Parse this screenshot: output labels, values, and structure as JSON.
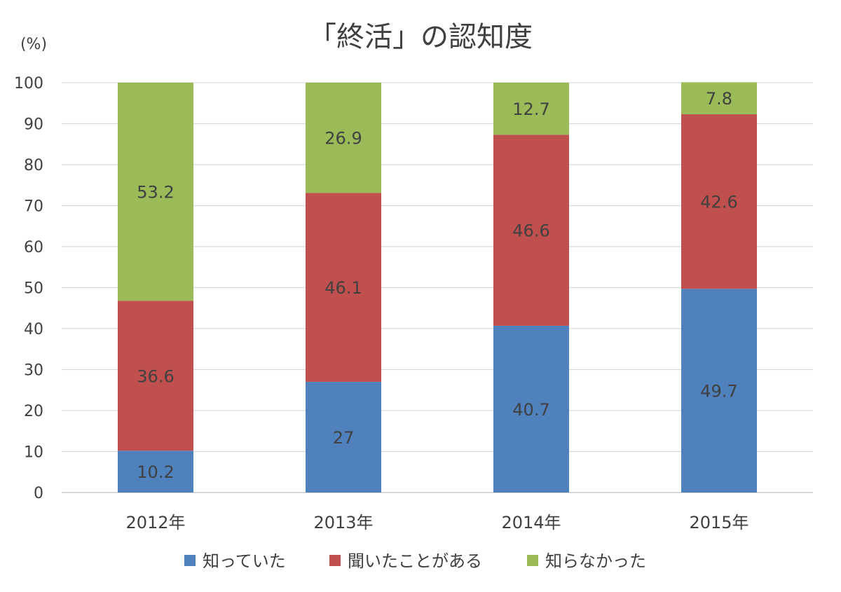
{
  "chart_data": {
    "type": "bar",
    "stacked": true,
    "title": "「終活」の認知度",
    "ylabel": "(%)",
    "xlabel": "",
    "categories": [
      "2012年",
      "2013年",
      "2014年",
      "2015年"
    ],
    "ylim": [
      0,
      100
    ],
    "yticks": [
      0,
      10,
      20,
      30,
      40,
      50,
      60,
      70,
      80,
      90,
      100
    ],
    "grid": true,
    "legend_position": "bottom",
    "series": [
      {
        "name": "知っていた",
        "color": "#4f81bd",
        "values": [
          10.2,
          27,
          40.7,
          49.7
        ]
      },
      {
        "name": "聞いたことがある",
        "color": "#c0504d",
        "values": [
          36.6,
          46.1,
          46.6,
          42.6
        ]
      },
      {
        "name": "知らなかった",
        "color": "#9bbb59",
        "values": [
          53.2,
          26.9,
          12.7,
          7.8
        ]
      }
    ]
  }
}
